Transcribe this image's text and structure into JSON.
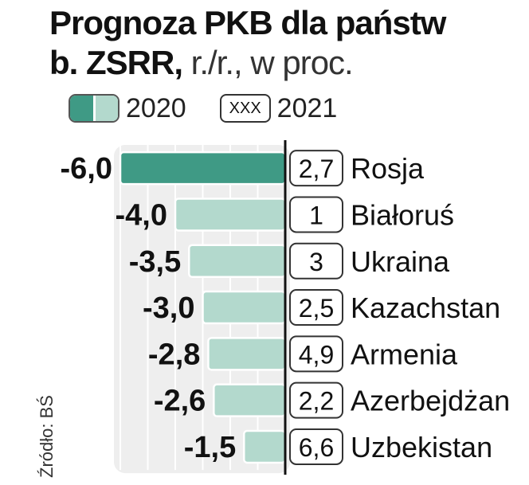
{
  "title": {
    "line1": "Prognoza PKB dla państw",
    "line2_bold": "b. ZSRR,",
    "line2_light": " r./r., w proc."
  },
  "legend": {
    "y2020": "2020",
    "y2021_box": "XXX",
    "y2021": "2021"
  },
  "source": "Źródło: BŚ",
  "colors": {
    "bar_highlight": "#3f9a85",
    "bar_normal": "#b3d9cd",
    "panel": "#eeeeee"
  },
  "chart_data": {
    "type": "bar",
    "orientation": "horizontal",
    "categories": [
      "Rosja",
      "Białoruś",
      "Ukraina",
      "Kazachstan",
      "Armenia",
      "Azerbejdżan",
      "Uzbekistan"
    ],
    "series": [
      {
        "name": "2020",
        "values": [
          -6.0,
          -4.0,
          -3.5,
          -3.0,
          -2.8,
          -2.6,
          -1.5
        ],
        "labels": [
          "-6,0",
          "-4,0",
          "-3,5",
          "-3,0",
          "-2,8",
          "-2,6",
          "-1,5"
        ]
      },
      {
        "name": "2021",
        "values": [
          2.7,
          1,
          3,
          2.5,
          4.9,
          2.2,
          6.6
        ],
        "labels": [
          "2,7",
          "1",
          "3",
          "2,5",
          "4,9",
          "2,2",
          "6,6"
        ]
      }
    ],
    "xlim": [
      -6,
      0
    ],
    "grid": true
  }
}
